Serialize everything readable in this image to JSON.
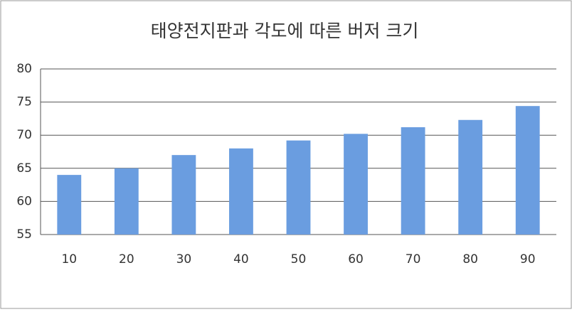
{
  "chart_data": {
    "type": "bar",
    "title": "태양전지판과 각도에 따른 버저 크기",
    "categories": [
      "10",
      "20",
      "30",
      "40",
      "50",
      "60",
      "70",
      "80",
      "90"
    ],
    "values": [
      64,
      65,
      67,
      68,
      69.2,
      70.2,
      71.2,
      72.3,
      74.4
    ],
    "color": "#6a9de0",
    "ylim": [
      55,
      80
    ],
    "yticks": [
      55,
      60,
      65,
      70,
      75,
      80
    ],
    "grid": true
  }
}
